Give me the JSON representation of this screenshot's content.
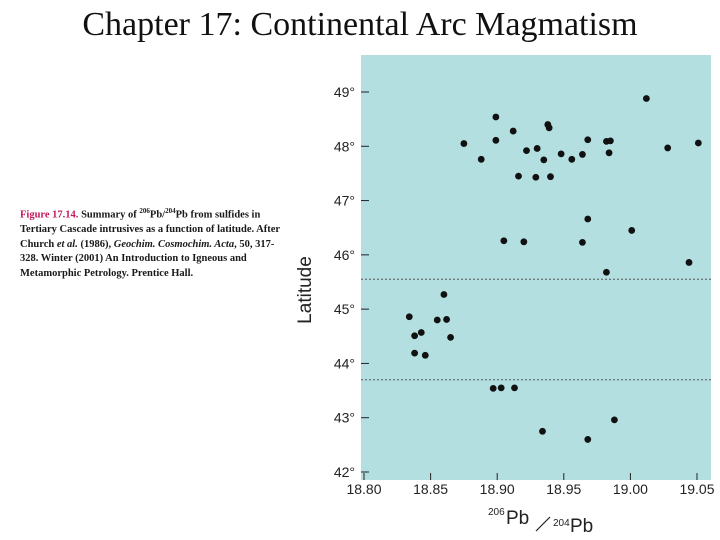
{
  "slide": {
    "title": "Chapter 17: Continental Arc Magmatism"
  },
  "caption": {
    "figure_label": "Figure 17.14.",
    "text_1": " Summary of ",
    "ratio_numerator_mass": "206",
    "ratio_num_element": "Pb/",
    "ratio_denominator_mass": "204",
    "ratio_den_element": "Pb",
    "text_2": " from sulfides in Tertiary Cascade intrusives as a function of latitude. After Church ",
    "et_al": "et al.",
    "text_3": " (1986), ",
    "journal": "Geochim. Cosmochim. Acta",
    "text_4": ", 50, 317-328. Winter (2001) An Introduction to Igneous and Metamorphic Petrology. Prentice Hall."
  },
  "chart_data": {
    "type": "scatter",
    "ylabel": "Latitude",
    "xlabel_parts": {
      "mass1": "206",
      "el1": "Pb",
      "mass2": "204",
      "el2": "Pb"
    },
    "xlim": [
      18.8,
      19.05
    ],
    "ylim": [
      42,
      49.5
    ],
    "x_ticks": [
      18.8,
      18.85,
      18.9,
      18.95,
      19.0,
      19.05
    ],
    "x_tick_labels": [
      "18.80",
      "18.85",
      "18.90",
      "18.95",
      "19.00",
      "19.05"
    ],
    "y_ticks": [
      42,
      43,
      44,
      45,
      46,
      47,
      48,
      49
    ],
    "y_tick_labels": [
      "42°",
      "43°",
      "44°",
      "45°",
      "46°",
      "47°",
      "48°",
      "49°"
    ],
    "grid": false,
    "dashed_reference_lines_y": [
      45.55,
      43.7
    ],
    "colors": {
      "background": "#b3dfe0",
      "points": "#111111",
      "axis": "#222222"
    },
    "points": [
      {
        "x": 19.012,
        "y": 48.88
      },
      {
        "x": 18.899,
        "y": 48.54
      },
      {
        "x": 18.912,
        "y": 48.28
      },
      {
        "x": 18.938,
        "y": 48.4
      },
      {
        "x": 18.939,
        "y": 48.34
      },
      {
        "x": 18.875,
        "y": 48.05
      },
      {
        "x": 18.899,
        "y": 48.11
      },
      {
        "x": 18.968,
        "y": 48.12
      },
      {
        "x": 18.982,
        "y": 48.09
      },
      {
        "x": 18.985,
        "y": 48.1
      },
      {
        "x": 19.028,
        "y": 47.97
      },
      {
        "x": 19.051,
        "y": 48.06
      },
      {
        "x": 18.922,
        "y": 47.92
      },
      {
        "x": 18.93,
        "y": 47.96
      },
      {
        "x": 18.935,
        "y": 47.75
      },
      {
        "x": 18.948,
        "y": 47.86
      },
      {
        "x": 18.956,
        "y": 47.76
      },
      {
        "x": 18.964,
        "y": 47.85
      },
      {
        "x": 18.984,
        "y": 47.88
      },
      {
        "x": 18.888,
        "y": 47.76
      },
      {
        "x": 18.916,
        "y": 47.45
      },
      {
        "x": 18.929,
        "y": 47.43
      },
      {
        "x": 18.94,
        "y": 47.44
      },
      {
        "x": 18.968,
        "y": 46.66
      },
      {
        "x": 19.001,
        "y": 46.45
      },
      {
        "x": 18.905,
        "y": 46.26
      },
      {
        "x": 18.92,
        "y": 46.24
      },
      {
        "x": 18.964,
        "y": 46.23
      },
      {
        "x": 18.982,
        "y": 45.68
      },
      {
        "x": 19.044,
        "y": 45.86
      },
      {
        "x": 18.86,
        "y": 45.27
      },
      {
        "x": 18.834,
        "y": 44.86
      },
      {
        "x": 18.855,
        "y": 44.8
      },
      {
        "x": 18.862,
        "y": 44.81
      },
      {
        "x": 18.843,
        "y": 44.57
      },
      {
        "x": 18.838,
        "y": 44.51
      },
      {
        "x": 18.865,
        "y": 44.48
      },
      {
        "x": 18.838,
        "y": 44.19
      },
      {
        "x": 18.846,
        "y": 44.15
      },
      {
        "x": 18.897,
        "y": 43.54
      },
      {
        "x": 18.903,
        "y": 43.55
      },
      {
        "x": 18.913,
        "y": 43.55
      },
      {
        "x": 18.988,
        "y": 42.96
      },
      {
        "x": 18.934,
        "y": 42.75
      },
      {
        "x": 18.968,
        "y": 42.6
      }
    ]
  }
}
